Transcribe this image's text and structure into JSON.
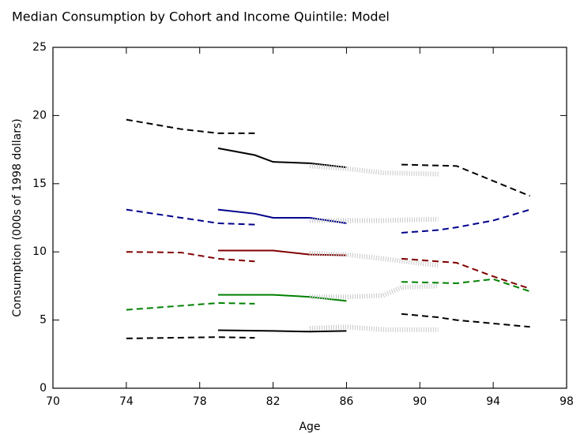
{
  "chart_data": {
    "type": "line",
    "title": "Median Consumption by Cohort and Income Quintile:  Model",
    "x_label": "Age",
    "y_label": "Consumption (000s of 1998 dollars)",
    "xlim": [
      70,
      98
    ],
    "xticks": [
      70,
      74,
      78,
      82,
      86,
      90,
      94,
      98
    ],
    "ylim": [
      0,
      25
    ],
    "yticks": [
      0,
      5,
      10,
      15,
      20,
      25
    ],
    "series": [
      {
        "color": "#000000",
        "style": "dashed",
        "x": [
          74,
          77,
          79,
          81
        ],
        "values": [
          19.7,
          19.0,
          18.7,
          18.7
        ]
      },
      {
        "color": "#00008b",
        "style": "dashed",
        "x": [
          74,
          79,
          81
        ],
        "values": [
          13.1,
          12.1,
          12.0
        ]
      },
      {
        "color": "#800000",
        "style": "dashed",
        "x": [
          74,
          77,
          79,
          81
        ],
        "values": [
          10.0,
          9.95,
          9.5,
          9.3
        ]
      },
      {
        "color": "#008000",
        "style": "dashed",
        "x": [
          74,
          79,
          81
        ],
        "values": [
          5.75,
          6.25,
          6.2
        ]
      },
      {
        "color": "#000000",
        "style": "dashed",
        "x": [
          74,
          79,
          81
        ],
        "values": [
          3.65,
          3.75,
          3.7
        ]
      },
      {
        "color": "#000000",
        "style": "solid",
        "x": [
          79,
          81,
          82,
          84,
          86
        ],
        "values": [
          17.6,
          17.1,
          16.6,
          16.5,
          16.2
        ]
      },
      {
        "color": "#00008b",
        "style": "solid",
        "x": [
          79,
          81,
          82,
          84,
          86
        ],
        "values": [
          13.1,
          12.8,
          12.5,
          12.5,
          12.1
        ]
      },
      {
        "color": "#800000",
        "style": "solid",
        "x": [
          79,
          82,
          84,
          86
        ],
        "values": [
          10.1,
          10.1,
          9.8,
          9.75
        ]
      },
      {
        "color": "#008000",
        "style": "solid",
        "x": [
          79,
          82,
          84,
          86
        ],
        "values": [
          6.85,
          6.85,
          6.7,
          6.4
        ]
      },
      {
        "color": "#000000",
        "style": "solid",
        "x": [
          79,
          82,
          84,
          86
        ],
        "values": [
          4.25,
          4.2,
          4.15,
          4.2
        ]
      },
      {
        "color": "#c8c8c8",
        "style": "dotted",
        "x": [
          84,
          86,
          88,
          91
        ],
        "values": [
          16.3,
          16.1,
          15.8,
          15.7
        ]
      },
      {
        "color": "#c8c8c8",
        "style": "dotted",
        "x": [
          84,
          86,
          88,
          91
        ],
        "values": [
          12.3,
          12.3,
          12.3,
          12.4
        ]
      },
      {
        "color": "#c8c8c8",
        "style": "dotted",
        "x": [
          84,
          86,
          88,
          91
        ],
        "values": [
          9.9,
          9.8,
          9.5,
          9.0
        ]
      },
      {
        "color": "#c8c8c8",
        "style": "dotted",
        "x": [
          84,
          86,
          88,
          89,
          91
        ],
        "values": [
          6.7,
          6.7,
          6.8,
          7.4,
          7.5
        ]
      },
      {
        "color": "#c8c8c8",
        "style": "dotted",
        "x": [
          84,
          86,
          88,
          91
        ],
        "values": [
          4.4,
          4.5,
          4.3,
          4.3
        ]
      },
      {
        "color": "#000000",
        "style": "dashed",
        "x": [
          89,
          92,
          94,
          96
        ],
        "values": [
          16.4,
          16.3,
          15.2,
          14.1
        ]
      },
      {
        "color": "#00008b",
        "style": "dashed",
        "x": [
          89,
          91,
          92,
          94,
          96
        ],
        "values": [
          11.4,
          11.6,
          11.8,
          12.3,
          13.1
        ]
      },
      {
        "color": "#800000",
        "style": "dashed",
        "x": [
          89,
          92,
          94,
          96
        ],
        "values": [
          9.5,
          9.2,
          8.2,
          7.3
        ]
      },
      {
        "color": "#008000",
        "style": "dashed",
        "x": [
          89,
          92,
          94,
          96
        ],
        "values": [
          7.8,
          7.7,
          8.0,
          7.1
        ]
      },
      {
        "color": "#000000",
        "style": "dashed",
        "x": [
          89,
          91,
          92,
          94,
          96
        ],
        "values": [
          5.45,
          5.2,
          5.0,
          4.75,
          4.5
        ]
      }
    ]
  }
}
